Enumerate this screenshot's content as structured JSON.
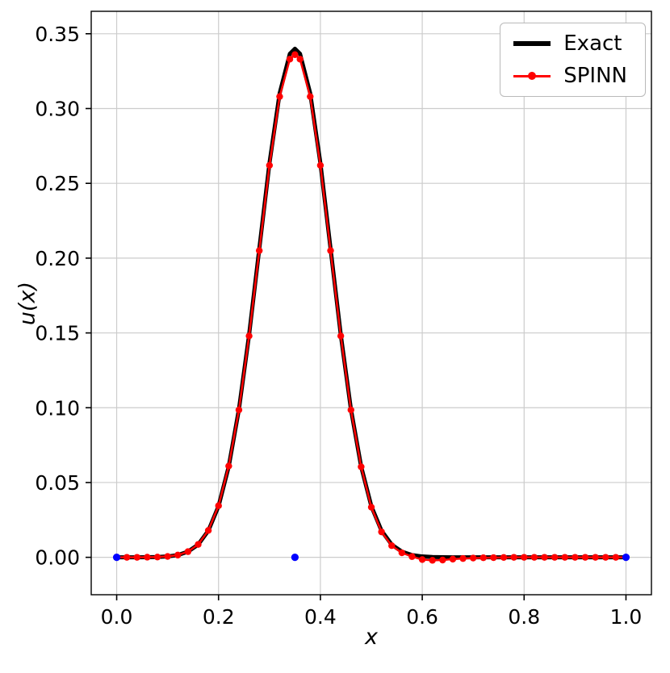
{
  "figure": {
    "background": "#ffffff"
  },
  "chart_data": {
    "type": "line",
    "title": "",
    "xlabel": "x",
    "ylabel": "u(x)",
    "xlim": [
      -0.05,
      1.05
    ],
    "ylim": [
      -0.025,
      0.365
    ],
    "grid": true,
    "colors": {
      "grid": "#cccccc",
      "axis": "#000000",
      "exact": "#000000",
      "spinn": "#ff0000",
      "points": "#0000ff"
    },
    "x_ticks": [
      0.0,
      0.2,
      0.4,
      0.6,
      0.8,
      1.0
    ],
    "x_tick_labels": [
      "0.0",
      "0.2",
      "0.4",
      "0.6",
      "0.8",
      "1.0"
    ],
    "y_ticks": [
      0.0,
      0.05,
      0.1,
      0.15,
      0.2,
      0.25,
      0.3,
      0.35
    ],
    "y_tick_labels": [
      "0.00",
      "0.05",
      "0.10",
      "0.15",
      "0.20",
      "0.25",
      "0.30",
      "0.35"
    ],
    "legend": {
      "position": "upper right",
      "entries": [
        {
          "label": "Exact",
          "color": "#000000",
          "marker": false
        },
        {
          "label": "SPINN",
          "color": "#ff0000",
          "marker": true
        }
      ]
    },
    "x": [
      0.0,
      0.02,
      0.04,
      0.06,
      0.08,
      0.1,
      0.12,
      0.14,
      0.16,
      0.18,
      0.2,
      0.22,
      0.24,
      0.26,
      0.28,
      0.3,
      0.32,
      0.34,
      0.35,
      0.36,
      0.38,
      0.4,
      0.42,
      0.44,
      0.46,
      0.48,
      0.5,
      0.52,
      0.54,
      0.56,
      0.58,
      0.6,
      0.62,
      0.64,
      0.66,
      0.68,
      0.7,
      0.72,
      0.74,
      0.76,
      0.78,
      0.8,
      0.82,
      0.84,
      0.86,
      0.88,
      0.9,
      0.92,
      0.94,
      0.96,
      0.98,
      1.0
    ],
    "series": [
      {
        "name": "Exact",
        "color": "#000000",
        "linewidth": 5,
        "marker": null,
        "values": [
          0.0,
          0.0,
          0.0,
          0.0001,
          0.0002,
          0.0006,
          0.0015,
          0.0038,
          0.0085,
          0.0178,
          0.0342,
          0.0607,
          0.0989,
          0.1488,
          0.2062,
          0.2635,
          0.3102,
          0.3366,
          0.34,
          0.3366,
          0.3102,
          0.2635,
          0.2062,
          0.1488,
          0.0989,
          0.0607,
          0.0342,
          0.0178,
          0.0085,
          0.0038,
          0.0015,
          0.0006,
          0.0002,
          0.0001,
          0.0,
          0.0,
          0.0,
          0.0,
          0.0,
          0.0,
          0.0,
          0.0,
          0.0,
          0.0,
          0.0,
          0.0,
          0.0,
          0.0,
          0.0,
          0.0,
          0.0,
          0.0
        ]
      },
      {
        "name": "SPINN",
        "color": "#ff0000",
        "linewidth": 2.5,
        "marker": "circle",
        "values": [
          0.0,
          0.0,
          0.0,
          0.0001,
          0.0002,
          0.0006,
          0.0015,
          0.0038,
          0.0086,
          0.018,
          0.0345,
          0.061,
          0.0985,
          0.148,
          0.205,
          0.262,
          0.308,
          0.333,
          0.336,
          0.333,
          0.308,
          0.262,
          0.205,
          0.148,
          0.0985,
          0.0605,
          0.0335,
          0.017,
          0.0078,
          0.003,
          0.0005,
          -0.0015,
          -0.002,
          -0.0018,
          -0.0012,
          -0.0008,
          -0.0005,
          -0.0003,
          -0.0002,
          -0.0001,
          0.0,
          0.0,
          0.0,
          0.0,
          0.0,
          0.0,
          0.0,
          0.0,
          0.0,
          0.0,
          0.0,
          0.0
        ]
      }
    ],
    "scatter": {
      "name": "collocation-points",
      "color": "#0000ff",
      "points": [
        [
          0.0,
          0.0
        ],
        [
          0.35,
          0.0
        ],
        [
          1.0,
          0.0
        ]
      ]
    }
  }
}
